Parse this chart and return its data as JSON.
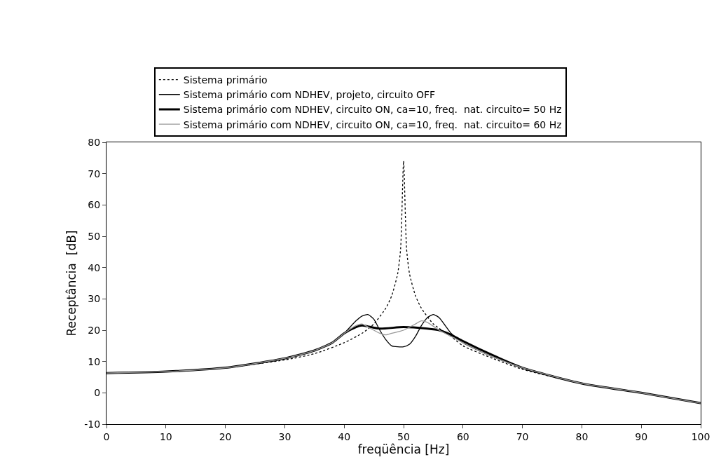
{
  "chart_data": {
    "type": "line",
    "xlabel": "freqüência [Hz]",
    "ylabel": "Receptância  [dB]",
    "xlim": [
      0,
      100
    ],
    "ylim": [
      -10,
      80
    ],
    "xticks": [
      0,
      10,
      20,
      30,
      40,
      50,
      60,
      70,
      80,
      90,
      100
    ],
    "yticks": [
      -10,
      0,
      10,
      20,
      30,
      40,
      50,
      60,
      70,
      80
    ],
    "grid": false,
    "legend": "top",
    "marker": "none",
    "series": [
      {
        "name": "Sistema primário",
        "color": "#000000",
        "line_style": "dotted",
        "x": [
          0,
          10,
          20,
          30,
          35,
          40,
          43,
          45,
          47,
          48,
          49,
          49.5,
          50,
          50.5,
          51,
          52,
          53,
          55,
          58,
          60,
          65,
          70,
          80,
          90,
          100
        ],
        "values": [
          6.3,
          6.8,
          8,
          10.5,
          12.5,
          16,
          19,
          22,
          27,
          31,
          38,
          46,
          74,
          46,
          38,
          31,
          27,
          22,
          18,
          15,
          11,
          7.5,
          3,
          0,
          -3.3
        ]
      },
      {
        "name": "Sistema primário com NDHEV, projeto, circuito OFF",
        "color": "#000000",
        "line_style": "solid",
        "x": [
          0,
          10,
          20,
          30,
          35,
          38,
          40,
          42,
          43,
          44,
          45,
          46,
          47,
          48,
          49,
          50,
          51,
          52,
          53,
          54,
          55,
          56,
          57,
          58,
          60,
          65,
          70,
          80,
          90,
          100
        ],
        "values": [
          6.3,
          6.8,
          8,
          11,
          13.5,
          16,
          19,
          23,
          24.5,
          25,
          23.5,
          20,
          17,
          15,
          14.7,
          14.7,
          15.5,
          18,
          21.5,
          24,
          25,
          24,
          21.5,
          19,
          16,
          11.5,
          8,
          3,
          0,
          -3.3
        ]
      },
      {
        "name": "Sistema primário com NDHEV, circuito ON, ca=10, freq.  nat. circuito= 50 Hz",
        "color": "#000000",
        "line_style": "solid",
        "x": [
          0,
          10,
          20,
          30,
          35,
          38,
          40,
          42,
          43,
          44,
          46,
          50,
          54,
          56,
          58,
          60,
          65,
          70,
          80,
          90,
          100
        ],
        "values": [
          6.3,
          6.8,
          8,
          11,
          13.5,
          16,
          19,
          21,
          21.5,
          21.2,
          20.5,
          21,
          20.5,
          20,
          18.5,
          16.5,
          12,
          8,
          3,
          0,
          -3.3
        ]
      },
      {
        "name": "Sistema primário com NDHEV, circuito ON, ca=10, freq.  nat. circuito= 60 Hz",
        "color": "#999999",
        "line_style": "solid",
        "x": [
          0,
          10,
          20,
          30,
          35,
          38,
          40,
          42,
          43,
          44,
          46,
          47,
          48,
          50,
          52,
          53,
          54,
          56,
          58,
          60,
          65,
          70,
          80,
          90,
          100
        ],
        "values": [
          6.3,
          6.8,
          8,
          11,
          13.5,
          16,
          19,
          21.5,
          22,
          21,
          19,
          18.5,
          19,
          20,
          22,
          23,
          22.5,
          20,
          18,
          16,
          11.5,
          8,
          3,
          0,
          -3.3
        ]
      }
    ]
  }
}
